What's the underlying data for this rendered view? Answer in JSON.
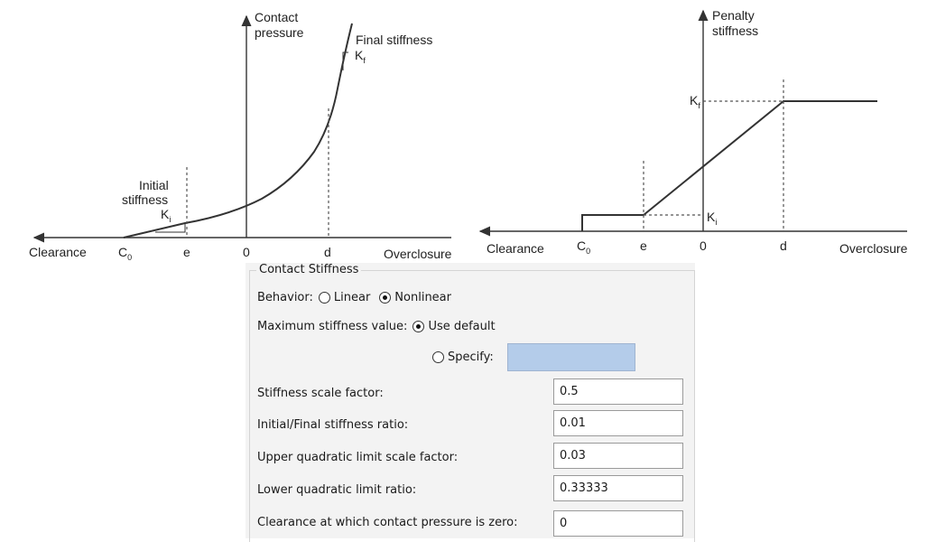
{
  "left_plot": {
    "y_axis_label_1": "Contact",
    "y_axis_label_2": "pressure",
    "final_label": "Final stiffness",
    "final_k": "K",
    "final_k_sub": "f",
    "initial_label_1": "Initial",
    "initial_label_2": "stiffness",
    "initial_k": "K",
    "initial_k_sub": "i",
    "x_left_label": "Clearance",
    "x_right_label": "Overclosure",
    "tick_c0": "C",
    "tick_c0_sub": "0",
    "tick_e": "e",
    "tick_0": "0",
    "tick_d": "d"
  },
  "right_plot": {
    "y_axis_label_1": "Penalty",
    "y_axis_label_2": "stiffness",
    "kf": "K",
    "kf_sub": "f",
    "ki": "K",
    "ki_sub": "i",
    "x_left_label": "Clearance",
    "x_right_label": "Overclosure",
    "tick_c0": "C",
    "tick_c0_sub": "0",
    "tick_e": "e",
    "tick_0": "0",
    "tick_d": "d"
  },
  "dialog": {
    "group_title": "Contact Stiffness",
    "behavior_label": "Behavior:",
    "behavior_linear": "Linear",
    "behavior_nonlinear": "Nonlinear",
    "behavior_selected": "Nonlinear",
    "max_stiffness_label": "Maximum stiffness value:",
    "use_default": "Use default",
    "specify": "Specify:",
    "specify_value": "",
    "fields": [
      {
        "label": "Stiffness scale factor:",
        "value": "0.5"
      },
      {
        "label": "Initial/Final stiffness ratio:",
        "value": "0.01"
      },
      {
        "label": "Upper quadratic limit scale factor:",
        "value": "0.03"
      },
      {
        "label": "Lower quadratic limit ratio:",
        "value": "0.33333"
      },
      {
        "label": "Clearance at which contact pressure is zero:",
        "value": "0"
      }
    ]
  }
}
